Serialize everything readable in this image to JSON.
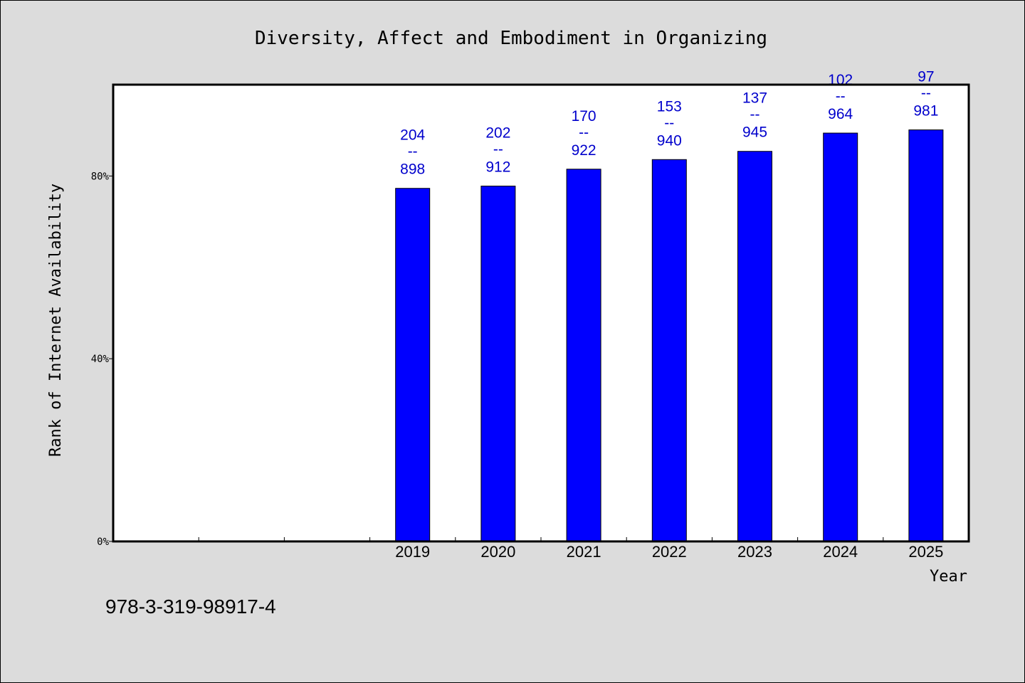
{
  "chart_data": {
    "type": "bar",
    "title": "Diversity, Affect and Embodiment in Organizing",
    "xlabel": "Year",
    "ylabel": "Rank of Internet Availability",
    "ylim": [
      0,
      100
    ],
    "yticks": [
      0,
      40,
      80
    ],
    "ytick_labels": [
      "0%",
      "40%",
      "80%"
    ],
    "x_slots": 10,
    "categories": [
      "2019",
      "2020",
      "2021",
      "2022",
      "2023",
      "2024",
      "2025"
    ],
    "category_slots": [
      3,
      4,
      5,
      6,
      7,
      8,
      9
    ],
    "values": [
      77.3,
      77.8,
      81.5,
      83.6,
      85.4,
      89.4,
      90.1
    ],
    "data_labels": [
      {
        "top": "204",
        "mid": "--",
        "bottom": "898"
      },
      {
        "top": "202",
        "mid": "--",
        "bottom": "912"
      },
      {
        "top": "170",
        "mid": "--",
        "bottom": "922"
      },
      {
        "top": "153",
        "mid": "--",
        "bottom": "940"
      },
      {
        "top": "137",
        "mid": "--",
        "bottom": "945"
      },
      {
        "top": "102",
        "mid": "--",
        "bottom": "964"
      },
      {
        "top": "97",
        "mid": "--",
        "bottom": "981"
      }
    ],
    "bar_color": "#0000ff",
    "label_color": "#0000cc",
    "grid": false,
    "legend": "none"
  },
  "footer": {
    "isbn": "978-3-319-98917-4"
  }
}
